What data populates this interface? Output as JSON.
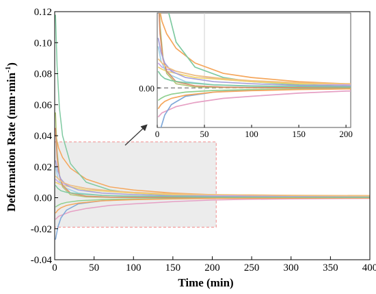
{
  "chart_data": {
    "type": "line",
    "xlabel": "Time (min)",
    "ylabel": "Deformation Rate (mm·min",
    "ylabel_sup": "-1",
    "ylabel_close": ")",
    "xlim": [
      0,
      400
    ],
    "ylim": [
      -0.04,
      0.12
    ],
    "xticks": [
      0,
      50,
      100,
      150,
      200,
      250,
      300,
      350,
      400
    ],
    "yticks": [
      -0.04,
      -0.02,
      0.0,
      0.02,
      0.04,
      0.06,
      0.08,
      0.1,
      0.12
    ],
    "ytick_labels": [
      "-0.04",
      "-0.02",
      "0.00",
      "0.02",
      "0.04",
      "0.06",
      "0.08",
      "0.10",
      "0.12"
    ],
    "highlight_region": {
      "x": [
        0,
        205
      ],
      "y": [
        -0.019,
        0.036
      ],
      "color": "#ececec",
      "border": "#f08a8a"
    },
    "colors": [
      "#f5a65b",
      "#7ec9a0",
      "#c9a3e8",
      "#e6a0c4",
      "#7fa8d9",
      "#f2d46b",
      "#9ed0e8",
      "#b3c97a",
      "#d98c6a",
      "#a6a0d9",
      "#8fcf8f",
      "#f0c080"
    ],
    "series": [
      {
        "x": [
          1,
          5,
          10,
          20,
          40,
          70,
          100,
          150,
          200,
          250,
          300,
          400
        ],
        "y": [
          0.041,
          0.032,
          0.026,
          0.019,
          0.012,
          0.007,
          0.005,
          0.003,
          0.002,
          0.0015,
          0.001,
          0.0008
        ]
      },
      {
        "x": [
          1,
          3,
          6,
          10,
          20,
          40,
          70,
          100,
          150,
          200,
          300,
          400
        ],
        "y": [
          0.118,
          0.085,
          0.058,
          0.04,
          0.022,
          0.01,
          0.005,
          0.003,
          0.0015,
          0.001,
          0.0005,
          0.0003
        ]
      },
      {
        "x": [
          1,
          5,
          10,
          20,
          40,
          70,
          100,
          150,
          200,
          250,
          300,
          400
        ],
        "y": [
          0.012,
          0.01,
          0.009,
          0.008,
          0.006,
          0.004,
          0.003,
          0.002,
          0.0015,
          0.001,
          0.0008,
          0.0005
        ]
      },
      {
        "x": [
          1,
          5,
          10,
          20,
          40,
          70,
          100,
          150,
          200,
          250,
          300,
          400
        ],
        "y": [
          -0.014,
          -0.012,
          -0.011,
          -0.009,
          -0.007,
          -0.005,
          -0.004,
          -0.0025,
          -0.0015,
          -0.001,
          -0.0008,
          -0.0005
        ]
      },
      {
        "x": [
          1,
          4,
          8,
          15,
          30,
          60,
          100,
          150,
          200,
          300,
          400
        ],
        "y": [
          -0.027,
          -0.019,
          -0.013,
          -0.008,
          -0.004,
          -0.002,
          -0.001,
          -0.0006,
          -0.0004,
          -0.0002,
          -0.0001
        ]
      },
      {
        "x": [
          1,
          5,
          10,
          20,
          40,
          70,
          100,
          150,
          200,
          250,
          300,
          400
        ],
        "y": [
          0.01,
          0.009,
          0.008,
          0.007,
          0.005,
          0.004,
          0.003,
          0.002,
          0.002,
          0.0018,
          0.0015,
          0.0012
        ]
      },
      {
        "x": [
          1,
          4,
          8,
          15,
          30,
          60,
          100,
          150,
          200,
          300,
          400
        ],
        "y": [
          0.02,
          0.013,
          0.009,
          0.006,
          0.003,
          0.0015,
          0.0008,
          0.0005,
          0.0003,
          0.0002,
          0.0001
        ]
      },
      {
        "x": [
          1,
          3,
          6,
          10,
          20,
          40,
          70,
          100,
          150,
          200,
          300,
          400
        ],
        "y": [
          0.055,
          0.03,
          0.015,
          0.007,
          0.002,
          0.0005,
          0.0002,
          0.0001,
          0.0,
          0.0,
          0.0,
          0.0
        ]
      },
      {
        "x": [
          1,
          3,
          6,
          10,
          20,
          40,
          70,
          100,
          150,
          200,
          300,
          400
        ],
        "y": [
          0.045,
          0.026,
          0.014,
          0.008,
          0.003,
          0.001,
          0.0004,
          0.0002,
          0.0001,
          0.0,
          0.0,
          0.0
        ]
      },
      {
        "x": [
          1,
          4,
          8,
          15,
          30,
          60,
          100,
          150,
          200,
          300,
          400
        ],
        "y": [
          0.024,
          0.017,
          0.012,
          0.008,
          0.005,
          0.003,
          0.002,
          0.0012,
          0.0008,
          0.0005,
          0.0003
        ]
      },
      {
        "x": [
          1,
          4,
          8,
          15,
          30,
          60,
          100,
          150,
          200,
          300,
          400
        ],
        "y": [
          -0.006,
          -0.005,
          -0.004,
          -0.003,
          -0.002,
          -0.0012,
          -0.0008,
          -0.0005,
          -0.0003,
          -0.0002,
          -0.0001
        ]
      },
      {
        "x": [
          1,
          5,
          10,
          20,
          40,
          70,
          100,
          150,
          200,
          250,
          300,
          400
        ],
        "y": [
          0.014,
          0.012,
          0.01,
          0.008,
          0.006,
          0.0045,
          0.0035,
          0.0025,
          0.002,
          0.0018,
          0.0016,
          0.0014
        ]
      },
      {
        "x": [
          1,
          4,
          8,
          15,
          30,
          60,
          100,
          150,
          200,
          300,
          400
        ],
        "y": [
          -0.01,
          -0.008,
          -0.0065,
          -0.005,
          -0.0035,
          -0.002,
          -0.0013,
          -0.0008,
          -0.0005,
          -0.0003,
          -0.0002
        ]
      },
      {
        "x": [
          1,
          4,
          8,
          15,
          30,
          60,
          100,
          150,
          200,
          300,
          400
        ],
        "y": [
          0.008,
          0.006,
          0.0045,
          0.0035,
          0.0025,
          0.0015,
          0.001,
          0.0007,
          0.0005,
          0.0003,
          0.0002
        ]
      }
    ],
    "inset": {
      "xlim": [
        0,
        205
      ],
      "ylim": [
        -0.019,
        0.036
      ],
      "xticks": [
        0,
        50,
        100,
        150,
        200
      ],
      "ytick_value": 0,
      "ytick_label": "0.00",
      "reference_vline_x": 50
    }
  }
}
